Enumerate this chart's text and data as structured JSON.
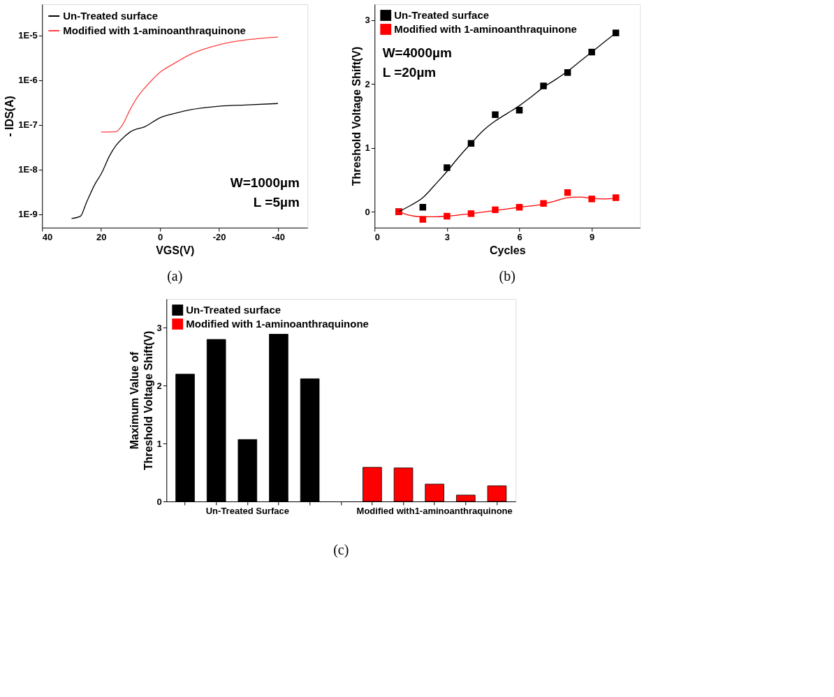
{
  "chart_data": [
    {
      "type": "line",
      "xlabel": "VGS(V)",
      "ylabel": "- IDS(A)",
      "log": "y",
      "grid": false,
      "legend": "top left",
      "xlim": [
        40,
        -50
      ],
      "xticks": [
        40,
        20,
        0,
        -20,
        -40
      ],
      "ylim": [
        5e-10,
        5e-05
      ],
      "yticks": [
        {
          "value": 1e-09,
          "label": "1E-9"
        },
        {
          "value": 1e-08,
          "label": "1E-8"
        },
        {
          "value": 1e-07,
          "label": "1E-7"
        },
        {
          "value": 1e-06,
          "label": "1E-6"
        },
        {
          "value": 1e-05,
          "label": "1E-5"
        }
      ],
      "annotations": [
        "W=1000µm",
        "L =5µm",
        "(a)"
      ],
      "series": [
        {
          "name": "Un-Treated surface",
          "color": "#000000",
          "x": [
            30,
            27,
            25,
            22,
            20,
            17,
            15,
            12,
            10,
            5,
            0,
            -5,
            -10,
            -20,
            -30,
            -40
          ],
          "values": [
            8e-10,
            9e-10,
            1.8e-09,
            4.8e-09,
            7.9e-09,
            2.1e-08,
            3.4e-08,
            5.5e-08,
            7e-08,
            9.2e-08,
            1.44e-07,
            1.8e-07,
            2.15e-07,
            2.6e-07,
            2.8e-07,
            3e-07
          ]
        },
        {
          "name": "Modified with 1-aminoanthraquinone",
          "color": "#ff4040",
          "x": [
            20,
            15,
            13,
            10,
            7,
            5,
            0,
            -5,
            -10,
            -20,
            -30,
            -40
          ],
          "values": [
            6.9e-08,
            7e-08,
            9.4e-08,
            2.3e-07,
            4.8e-07,
            6.9e-07,
            1.5e-06,
            2.4e-06,
            3.7e-06,
            6.2e-06,
            8.1e-06,
            9.2e-06
          ]
        }
      ]
    },
    {
      "type": "scatter",
      "xlabel": "Cycles",
      "ylabel": "Threshold Voltage Shift(V)",
      "grid": false,
      "legend": "top left",
      "marker": "square",
      "xlim": [
        0,
        11
      ],
      "xticks": [
        0,
        3,
        6,
        9
      ],
      "ylim": [
        -0.25,
        3.25
      ],
      "yticks": [
        0,
        1,
        2,
        3
      ],
      "annotations": [
        "W=4000µm",
        "L =20µm",
        "(b)"
      ],
      "series": [
        {
          "name": "Un-Treated surface",
          "color": "#000000",
          "x": [
            1,
            2,
            3,
            4,
            5,
            6,
            7,
            8,
            9,
            10
          ],
          "values": [
            0,
            0.07,
            0.69,
            1.07,
            1.52,
            1.59,
            1.97,
            2.18,
            2.5,
            2.8
          ]
        },
        {
          "name": "Modified with 1-aminoanthraquinone",
          "color": "#ff0000",
          "x": [
            1,
            2,
            3,
            4,
            5,
            6,
            7,
            8,
            9,
            10
          ],
          "values": [
            0,
            -0.12,
            -0.07,
            -0.03,
            0.03,
            0.07,
            0.13,
            0.3,
            0.2,
            0.22
          ]
        },
        {
          "type": "line",
          "marker": "none",
          "color": "#000000",
          "x": [
            1,
            1.5,
            2,
            2.5,
            3,
            3.5,
            4,
            4.5,
            5,
            5.5,
            6,
            6.5,
            7,
            7.5,
            8,
            8.5,
            9,
            9.5,
            10
          ],
          "values": [
            0,
            0.1,
            0.22,
            0.42,
            0.63,
            0.86,
            1.07,
            1.27,
            1.42,
            1.54,
            1.66,
            1.8,
            1.95,
            2.07,
            2.2,
            2.35,
            2.5,
            2.65,
            2.8
          ]
        },
        {
          "type": "line",
          "marker": "none",
          "color": "#ff0000",
          "x": [
            1,
            1.5,
            2,
            2.5,
            3,
            4,
            5,
            6,
            7,
            7.5,
            8,
            8.5,
            9,
            9.5,
            10
          ],
          "values": [
            0,
            -0.06,
            -0.08,
            -0.08,
            -0.07,
            -0.03,
            0.02,
            0.07,
            0.12,
            0.17,
            0.22,
            0.23,
            0.21,
            0.2,
            0.21
          ]
        }
      ]
    },
    {
      "type": "bar",
      "ylabel": "Maximum Value of\nThreshold Voltage Shift(V)",
      "grid": false,
      "legend": "top left",
      "ylim": [
        0,
        3.5
      ],
      "yticks": [
        0,
        1,
        2,
        3
      ],
      "categories": [
        null,
        null,
        "Un-Treated Surface",
        null,
        null,
        null,
        null,
        null,
        "Modified with1-aminoanthraquinone",
        null,
        null
      ],
      "annotations": [
        "(c)"
      ],
      "series": [
        {
          "name": "Un-Treated surface",
          "color": "#000000",
          "values": [
            2.2,
            2.8,
            1.07,
            2.89,
            2.12,
            null,
            null,
            null,
            null,
            null,
            null
          ]
        },
        {
          "name": "Modified with 1-aminoanthraquinone",
          "color": "#ff0000",
          "values": [
            null,
            null,
            null,
            null,
            null,
            null,
            0.59,
            0.58,
            0.3,
            0.11,
            0.27
          ]
        }
      ]
    }
  ]
}
